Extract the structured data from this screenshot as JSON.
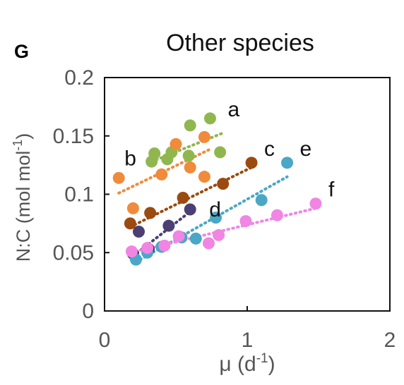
{
  "panel_label": "G",
  "chart_data": {
    "type": "scatter",
    "title": "Other species",
    "xlabel_base": "μ (d",
    "xlabel_sup": "-1",
    "xlabel_end": ")",
    "ylabel_base": "N:C (mol mol",
    "ylabel_sup": "-1",
    "ylabel_end": ")",
    "xlim": [
      0,
      2
    ],
    "ylim": [
      0,
      0.2
    ],
    "xticks": [
      "0",
      "1",
      "2"
    ],
    "yticks": [
      "0",
      "0.05",
      "0.1",
      "0.15",
      "0.2"
    ],
    "grid": false,
    "series": [
      {
        "name": "a",
        "color": "#8fb74e",
        "points": [
          [
            0.33,
            0.128
          ],
          [
            0.35,
            0.135
          ],
          [
            0.44,
            0.13
          ],
          [
            0.47,
            0.136
          ],
          [
            0.59,
            0.133
          ],
          [
            0.6,
            0.159
          ],
          [
            0.74,
            0.165
          ],
          [
            0.81,
            0.136
          ]
        ],
        "trend": [
          [
            0.33,
            0.128
          ],
          [
            0.82,
            0.152
          ]
        ]
      },
      {
        "name": "b",
        "color": "#ef8b3b",
        "points": [
          [
            0.1,
            0.114
          ],
          [
            0.2,
            0.088
          ],
          [
            0.4,
            0.117
          ],
          [
            0.5,
            0.143
          ],
          [
            0.6,
            0.123
          ],
          [
            0.7,
            0.149
          ],
          [
            0.7,
            0.115
          ]
        ],
        "trend": [
          [
            0.1,
            0.101
          ],
          [
            0.73,
            0.138
          ]
        ]
      },
      {
        "name": "c",
        "color": "#9b4a10",
        "points": [
          [
            0.18,
            0.075
          ],
          [
            0.32,
            0.084
          ],
          [
            0.55,
            0.097
          ],
          [
            0.83,
            0.109
          ],
          [
            1.03,
            0.127
          ]
        ],
        "trend": [
          [
            0.18,
            0.072
          ],
          [
            1.03,
            0.123
          ]
        ]
      },
      {
        "name": "d",
        "color": "#4b3f73",
        "points": [
          [
            0.2,
            0.049
          ],
          [
            0.24,
            0.068
          ],
          [
            0.31,
            0.053
          ],
          [
            0.45,
            0.073
          ],
          [
            0.6,
            0.087
          ]
        ],
        "trend": [
          [
            0.2,
            0.047
          ],
          [
            0.62,
            0.087
          ]
        ]
      },
      {
        "name": "e",
        "color": "#4aa7c6",
        "points": [
          [
            0.22,
            0.044
          ],
          [
            0.3,
            0.05
          ],
          [
            0.4,
            0.055
          ],
          [
            0.54,
            0.063
          ],
          [
            0.64,
            0.062
          ],
          [
            0.78,
            0.08
          ],
          [
            1.1,
            0.095
          ],
          [
            1.28,
            0.127
          ]
        ],
        "trend": [
          [
            0.22,
            0.042
          ],
          [
            1.28,
            0.115
          ]
        ]
      },
      {
        "name": "f",
        "color": "#f085e3",
        "points": [
          [
            0.19,
            0.051
          ],
          [
            0.3,
            0.054
          ],
          [
            0.42,
            0.056
          ],
          [
            0.52,
            0.064
          ],
          [
            0.73,
            0.058
          ],
          [
            0.8,
            0.065
          ],
          [
            0.99,
            0.077
          ],
          [
            1.21,
            0.082
          ],
          [
            1.48,
            0.092
          ]
        ],
        "trend": [
          [
            0.19,
            0.05
          ],
          [
            1.48,
            0.088
          ]
        ]
      }
    ]
  }
}
